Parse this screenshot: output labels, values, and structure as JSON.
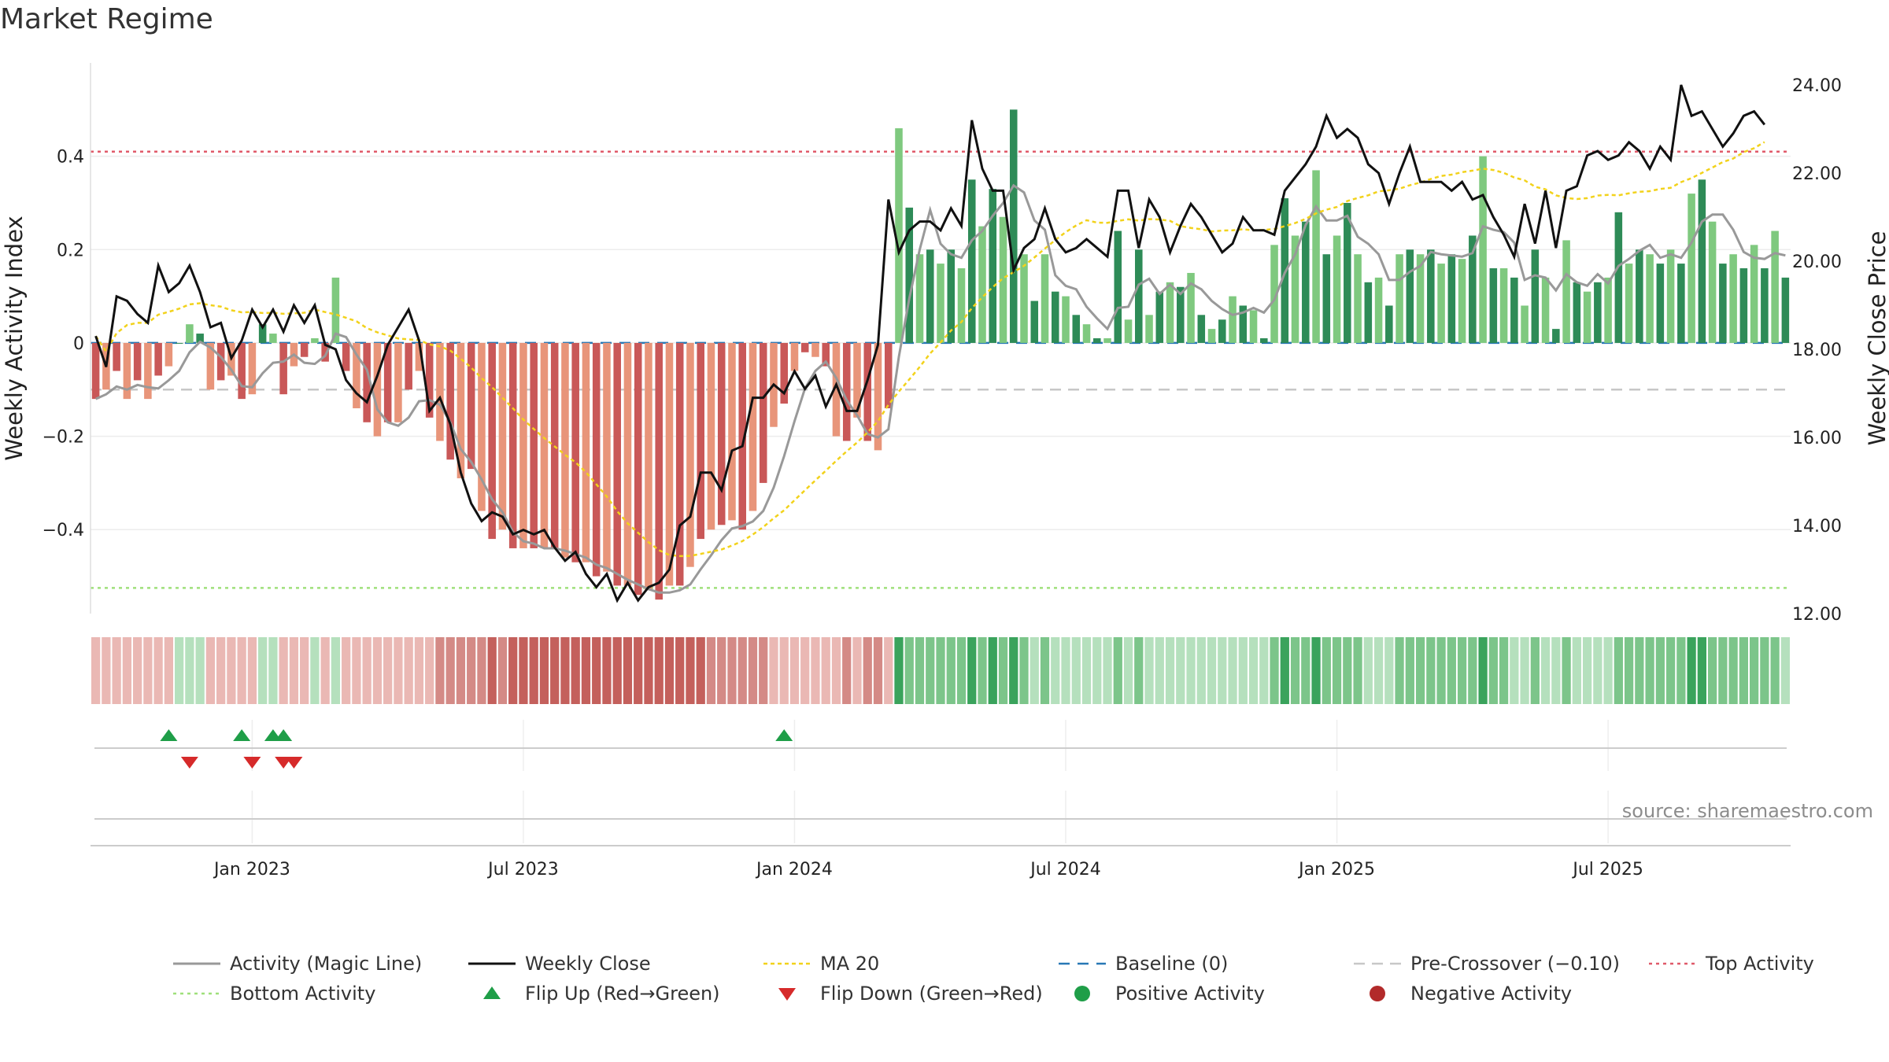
{
  "title": "Market Regime",
  "source": "source: sharemaestro.com",
  "chart_data": {
    "type": "bar",
    "title": "Market Regime",
    "ylabel_left": "Weekly Activity Index",
    "ylabel_right": "Weekly Close Price",
    "ylim_left": [
      -0.58,
      0.6
    ],
    "ylim_right": [
      12.0,
      24.5
    ],
    "yticks_left": [
      {
        "v": 0.4,
        "label": "0.4"
      },
      {
        "v": 0.2,
        "label": "0.2"
      },
      {
        "v": 0,
        "label": "0"
      },
      {
        "v": -0.2,
        "label": "−0.2"
      },
      {
        "v": -0.4,
        "label": "−0.4"
      }
    ],
    "yticks_right": [
      "24.00",
      "22.00",
      "20.00",
      "18.00",
      "16.00",
      "14.00",
      "12.00"
    ],
    "xticks": [
      {
        "week": 15,
        "label": "Jan 2023"
      },
      {
        "week": 41,
        "label": "Jul 2023"
      },
      {
        "week": 67,
        "label": "Jan 2024"
      },
      {
        "week": 93,
        "label": "Jul 2024"
      },
      {
        "week": 119,
        "label": "Jan 2025"
      },
      {
        "week": 145,
        "label": "Jul 2025"
      }
    ],
    "top_activity": 0.41,
    "bottom_activity": -0.525,
    "pre_crossover": -0.1,
    "baseline": 0,
    "activity": [
      -0.12,
      -0.1,
      -0.06,
      -0.12,
      -0.08,
      -0.12,
      -0.07,
      -0.05,
      0.0,
      0.04,
      0.02,
      -0.1,
      -0.08,
      -0.07,
      -0.12,
      -0.11,
      0.04,
      0.02,
      -0.11,
      -0.05,
      -0.03,
      0.01,
      -0.04,
      0.14,
      -0.06,
      -0.14,
      -0.17,
      -0.2,
      -0.17,
      -0.17,
      -0.1,
      -0.06,
      -0.16,
      -0.21,
      -0.25,
      -0.29,
      -0.27,
      -0.36,
      -0.42,
      -0.4,
      -0.44,
      -0.44,
      -0.44,
      -0.44,
      -0.44,
      -0.46,
      -0.47,
      -0.47,
      -0.5,
      -0.49,
      -0.52,
      -0.52,
      -0.54,
      -0.53,
      -0.55,
      -0.52,
      -0.52,
      -0.48,
      -0.42,
      -0.4,
      -0.39,
      -0.38,
      -0.4,
      -0.36,
      -0.3,
      -0.18,
      -0.13,
      -0.06,
      -0.02,
      -0.03,
      -0.05,
      -0.2,
      -0.21,
      -0.16,
      -0.21,
      -0.23,
      -0.14,
      0.46,
      0.29,
      0.19,
      0.2,
      0.17,
      0.2,
      0.16,
      0.35,
      0.25,
      0.33,
      0.27,
      0.5,
      0.19,
      0.09,
      0.19,
      0.11,
      0.1,
      0.06,
      0.04,
      0.01,
      0.01,
      0.24,
      0.05,
      0.2,
      0.06,
      0.11,
      0.13,
      0.12,
      0.15,
      0.06,
      0.03,
      0.05,
      0.1,
      0.08,
      0.07,
      0.01,
      0.21,
      0.31,
      0.23,
      0.26,
      0.37,
      0.19,
      0.23,
      0.3,
      0.19,
      0.13,
      0.14,
      0.08,
      0.19,
      0.2,
      0.19,
      0.2,
      0.17,
      0.19,
      0.18,
      0.23,
      0.4,
      0.16,
      0.16,
      0.14,
      0.08,
      0.2,
      0.14,
      0.03,
      0.22,
      0.13,
      0.11,
      0.13,
      0.14,
      0.28,
      0.17,
      0.2,
      0.19,
      0.17,
      0.2,
      0.17,
      0.32,
      0.35,
      0.26,
      0.17,
      0.19,
      0.16,
      0.21,
      0.16,
      0.24,
      0.14
    ],
    "weekly_close": [
      18.3,
      17.6,
      19.2,
      19.1,
      18.8,
      18.6,
      19.9,
      19.3,
      19.5,
      19.9,
      19.3,
      18.5,
      18.6,
      17.8,
      18.2,
      18.9,
      18.5,
      18.9,
      18.4,
      19.0,
      18.6,
      19.0,
      18.1,
      18.0,
      17.3,
      17.0,
      16.8,
      17.4,
      18.1,
      18.5,
      18.9,
      18.2,
      16.6,
      16.9,
      16.3,
      15.2,
      14.5,
      14.1,
      14.3,
      14.2,
      13.8,
      13.9,
      13.8,
      13.9,
      13.5,
      13.2,
      13.4,
      12.9,
      12.6,
      12.9,
      12.3,
      12.7,
      12.3,
      12.6,
      12.7,
      13.0,
      14.0,
      14.2,
      15.2,
      15.2,
      14.8,
      15.7,
      15.8,
      16.9,
      16.9,
      17.2,
      17.0,
      17.5,
      17.1,
      17.4,
      16.7,
      17.2,
      16.6,
      16.6,
      17.3,
      18.1,
      21.4,
      20.2,
      20.7,
      20.9,
      20.9,
      20.7,
      21.2,
      20.8,
      23.2,
      22.1,
      21.6,
      21.6,
      19.8,
      20.3,
      20.5,
      21.2,
      20.5,
      20.2,
      20.3,
      20.5,
      20.3,
      20.1,
      21.6,
      21.6,
      20.3,
      21.4,
      21.0,
      20.2,
      20.8,
      21.3,
      21.0,
      20.6,
      20.2,
      20.4,
      21.0,
      20.7,
      20.7,
      20.6,
      21.6,
      21.9,
      22.2,
      22.6,
      23.3,
      22.8,
      23.0,
      22.8,
      22.2,
      22.0,
      21.3,
      22.0,
      22.6,
      21.8,
      21.8,
      21.8,
      21.6,
      21.8,
      21.4,
      21.5,
      21.0,
      20.6,
      20.1,
      21.3,
      20.4,
      21.6,
      20.3,
      21.6,
      21.7,
      22.4,
      22.5,
      22.3,
      22.4,
      22.7,
      22.5,
      22.1,
      22.6,
      22.3,
      24.0,
      23.3,
      23.4,
      23.0,
      22.6,
      22.9,
      23.3,
      23.4,
      23.1
    ],
    "flip_up_weeks": [
      7,
      14,
      17,
      18,
      66
    ],
    "flip_down_weeks": [
      9,
      15,
      18,
      19
    ],
    "legend": [
      {
        "key": "activity_line",
        "label": "Activity (Magic Line)"
      },
      {
        "key": "weekly_close",
        "label": "Weekly Close"
      },
      {
        "key": "ma20",
        "label": "MA 20"
      },
      {
        "key": "baseline",
        "label": "Baseline (0)"
      },
      {
        "key": "pre_crossover",
        "label": "Pre-Crossover (−0.10)"
      },
      {
        "key": "top_activity",
        "label": "Top Activity"
      },
      {
        "key": "bottom_activity",
        "label": "Bottom Activity"
      },
      {
        "key": "flip_up",
        "label": "Flip Up (Red→Green)"
      },
      {
        "key": "flip_down",
        "label": "Flip Down (Green→Red)"
      },
      {
        "key": "positive_activity",
        "label": "Positive Activity"
      },
      {
        "key": "negative_activity",
        "label": "Negative Activity"
      }
    ],
    "legend_placement": "bottom",
    "colors": {
      "pos_dark": "#2e8b57",
      "pos_light": "#7fc97f",
      "neg_dark": "#c95858",
      "neg_light": "#e8957a",
      "activity_line": "#999999",
      "weekly_close": "#111111",
      "ma20": "#f2d21b",
      "baseline": "#2878b5",
      "pre_crossover": "#c7c7c7",
      "top_activity": "#e05a6a",
      "bottom_activity": "#9fe07a",
      "flip_up": "#1f9e48",
      "flip_down": "#d62a2a",
      "positive_marker": "#1f9e48",
      "negative_marker": "#b22a2a"
    }
  }
}
